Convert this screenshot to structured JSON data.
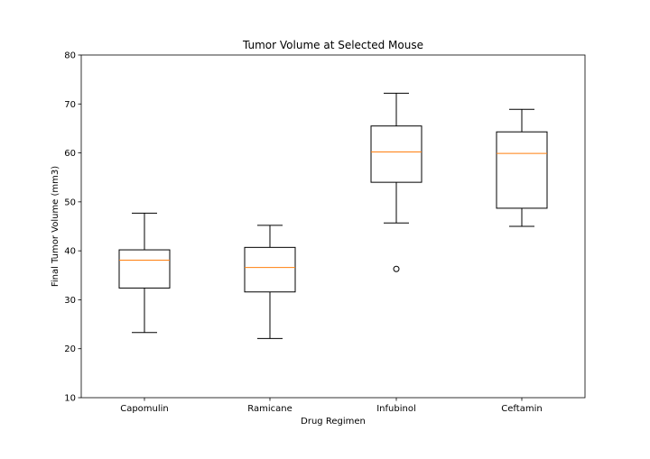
{
  "chart_data": {
    "type": "box",
    "title": "Tumor Volume at Selected Mouse",
    "xlabel": "Drug Regimen",
    "ylabel": "Final Tumor Volume (mm3)",
    "ylim": [
      10,
      80
    ],
    "yticks": [
      10,
      20,
      30,
      40,
      50,
      60,
      70,
      80
    ],
    "grid": false,
    "categories": [
      "Capomulin",
      "Ramicane",
      "Infubinol",
      "Ceftamin"
    ],
    "boxes": [
      {
        "whisker_low": 23.3,
        "q1": 32.4,
        "median": 38.1,
        "q3": 40.2,
        "whisker_high": 47.7,
        "outliers": []
      },
      {
        "whisker_low": 22.1,
        "q1": 31.6,
        "median": 36.6,
        "q3": 40.7,
        "whisker_high": 45.2,
        "outliers": []
      },
      {
        "whisker_low": 45.7,
        "q1": 54.0,
        "median": 60.2,
        "q3": 65.5,
        "whisker_high": 72.2,
        "outliers": [
          36.3
        ]
      },
      {
        "whisker_low": 45.0,
        "q1": 48.7,
        "median": 59.9,
        "q3": 64.3,
        "whisker_high": 68.9,
        "outliers": []
      }
    ],
    "colors": {
      "box": "#000000",
      "median": "#ff7f0e",
      "outlier": "#000000"
    }
  }
}
